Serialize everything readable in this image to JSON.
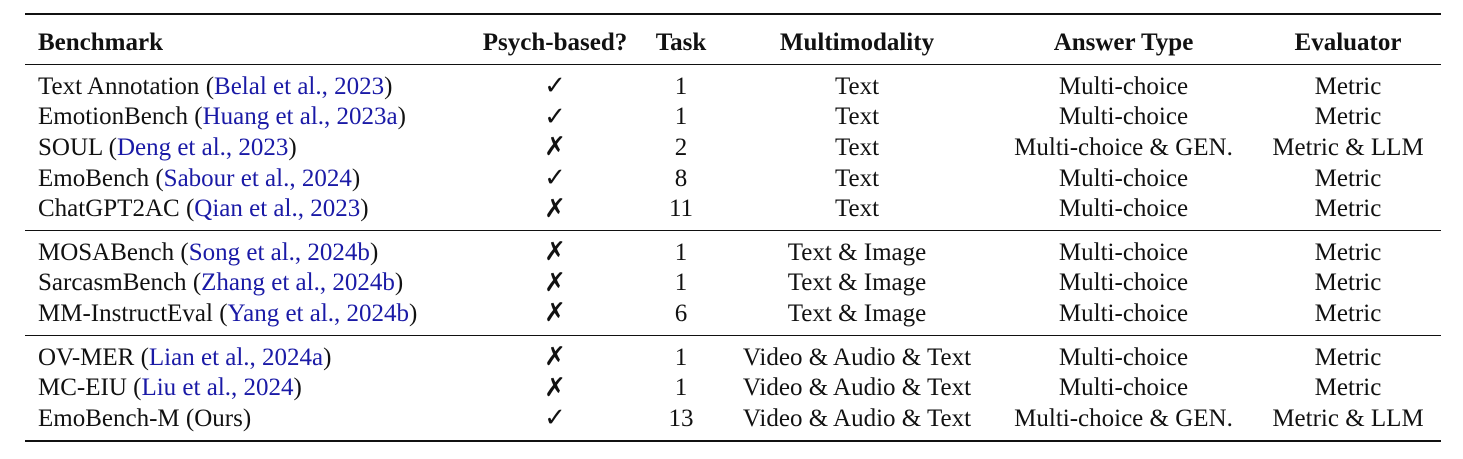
{
  "table": {
    "headers": [
      "Benchmark",
      "Psych-based?",
      "Task",
      "Multimodality",
      "Answer Type",
      "Evaluator"
    ],
    "groups": [
      [
        {
          "name": "Text Annotation",
          "cite": "Belal et al., 2023",
          "psych": "✓",
          "task": "1",
          "modality": "Text",
          "answer": "Multi-choice",
          "evaluator": "Metric"
        },
        {
          "name": "EmotionBench",
          "cite": "Huang et al., 2023a",
          "psych": "✓",
          "task": "1",
          "modality": "Text",
          "answer": "Multi-choice",
          "evaluator": "Metric"
        },
        {
          "name": "SOUL",
          "cite": "Deng et al., 2023",
          "psych": "✗",
          "task": "2",
          "modality": "Text",
          "answer": "Multi-choice & GEN.",
          "evaluator": "Metric & LLM"
        },
        {
          "name": "EmoBench",
          "cite": "Sabour et al., 2024",
          "psych": "✓",
          "task": "8",
          "modality": "Text",
          "answer": "Multi-choice",
          "evaluator": "Metric"
        },
        {
          "name": "ChatGPT2AC",
          "cite": "Qian et al., 2023",
          "psych": "✗",
          "task": "11",
          "modality": "Text",
          "answer": "Multi-choice",
          "evaluator": "Metric"
        }
      ],
      [
        {
          "name": "MOSABench",
          "cite": "Song et al., 2024b",
          "psych": "✗",
          "task": "1",
          "modality": "Text & Image",
          "answer": "Multi-choice",
          "evaluator": "Metric"
        },
        {
          "name": "SarcasmBench",
          "cite": "Zhang et al., 2024b",
          "psych": "✗",
          "task": "1",
          "modality": "Text & Image",
          "answer": "Multi-choice",
          "evaluator": "Metric"
        },
        {
          "name": "MM-InstructEval",
          "cite": "Yang et al., 2024b",
          "psych": "✗",
          "task": "6",
          "modality": "Text & Image",
          "answer": "Multi-choice",
          "evaluator": "Metric"
        }
      ],
      [
        {
          "name": "OV-MER",
          "cite": "Lian et al., 2024a",
          "psych": "✗",
          "task": "1",
          "modality": "Video & Audio & Text",
          "answer": "Multi-choice",
          "evaluator": "Metric"
        },
        {
          "name": "MC-EIU",
          "cite": "Liu et al., 2024",
          "psych": "✗",
          "task": "1",
          "modality": "Video & Audio & Text",
          "answer": "Multi-choice",
          "evaluator": "Metric"
        },
        {
          "name": "EmoBench-M (Ours)",
          "cite": "",
          "psych": "✓",
          "task": "13",
          "modality": "Video & Audio & Text",
          "answer": "Multi-choice & GEN.",
          "evaluator": "Metric & LLM"
        }
      ]
    ]
  },
  "colors": {
    "citation": "#1a1aa6",
    "text": "#111111"
  }
}
